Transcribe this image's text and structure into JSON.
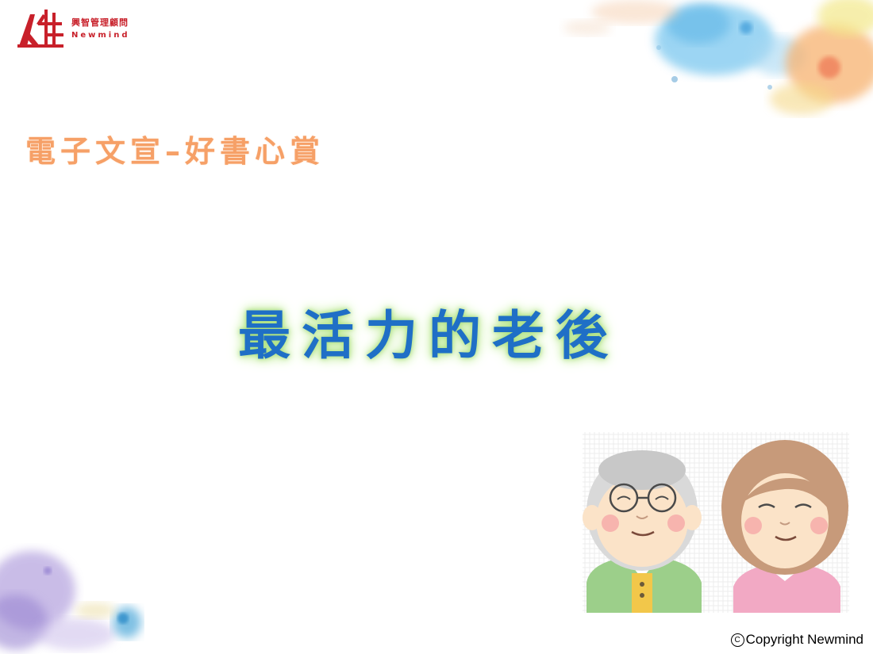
{
  "logo": {
    "name_cn": "興智管理顧問",
    "name_en": "Newmind"
  },
  "slide": {
    "subtitle": "電子文宣–好書心賞",
    "title": "最活力的老後"
  },
  "footer": {
    "copyright_symbol": "C",
    "copyright": "Copyright Newmind"
  },
  "colors": {
    "logo_red": "#c8202a",
    "subtitle_orange": "#f6a067",
    "title_blue": "#1f6fc6",
    "title_glow": "#b9e88f"
  }
}
